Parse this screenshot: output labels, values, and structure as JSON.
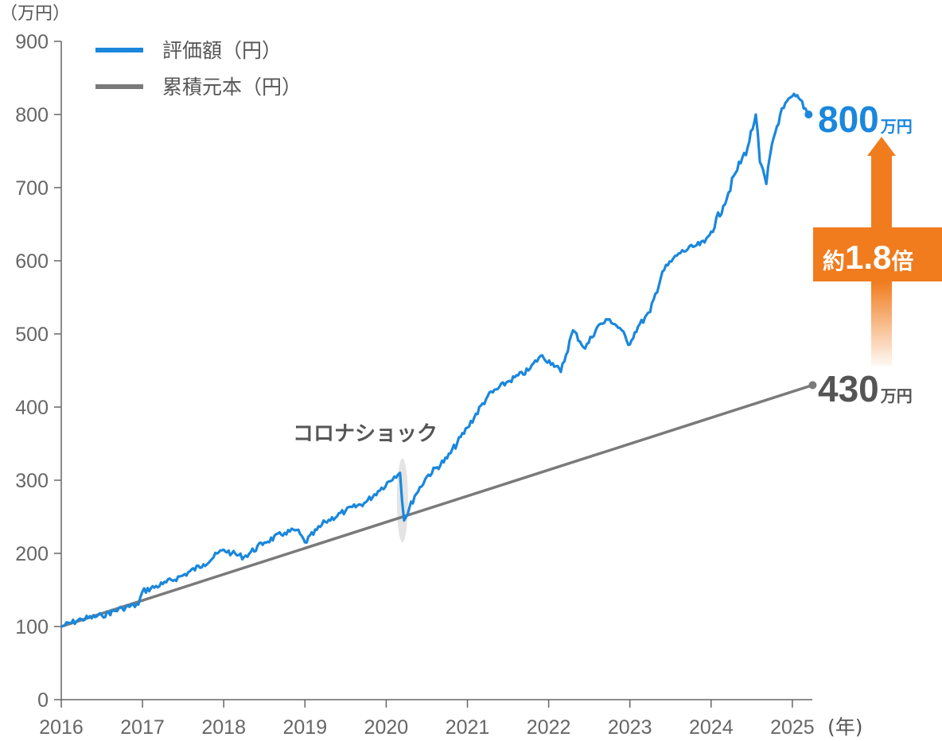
{
  "chart_data": {
    "type": "line",
    "y_unit_label": "（万円）",
    "x_unit_label": "(年)",
    "x_ticks": [
      "2016",
      "2017",
      "2018",
      "2019",
      "2020",
      "2021",
      "2022",
      "2023",
      "2024",
      "2025"
    ],
    "y_ticks": [
      "0",
      "100",
      "200",
      "300",
      "400",
      "500",
      "600",
      "700",
      "800",
      "900"
    ],
    "ylim": [
      0,
      900
    ],
    "xlim": [
      2016,
      2025.25
    ],
    "grid": false,
    "legend_position": "top-left",
    "series": [
      {
        "name": "評価額（円）",
        "color": "#1a87dc",
        "x": [
          2016.0,
          2016.25,
          2016.5,
          2016.75,
          2016.95,
          2017.0,
          2017.25,
          2017.5,
          2017.75,
          2018.0,
          2018.1,
          2018.25,
          2018.5,
          2018.75,
          2018.9,
          2019.0,
          2019.25,
          2019.5,
          2019.75,
          2019.9,
          2020.1,
          2020.17,
          2020.22,
          2020.35,
          2020.5,
          2020.75,
          2021.0,
          2021.25,
          2021.5,
          2021.75,
          2021.9,
          2022.05,
          2022.15,
          2022.3,
          2022.45,
          2022.6,
          2022.75,
          2022.9,
          2022.98,
          2023.1,
          2023.25,
          2023.4,
          2023.6,
          2023.8,
          2023.92,
          2024.0,
          2024.15,
          2024.3,
          2024.45,
          2024.55,
          2024.6,
          2024.68,
          2024.75,
          2024.85,
          2025.0,
          2025.1,
          2025.2
        ],
        "values": [
          100,
          110,
          115,
          125,
          130,
          148,
          158,
          170,
          185,
          205,
          200,
          195,
          215,
          228,
          232,
          215,
          243,
          258,
          270,
          285,
          305,
          310,
          245,
          278,
          305,
          330,
          372,
          415,
          435,
          450,
          470,
          460,
          448,
          505,
          480,
          510,
          520,
          505,
          485,
          510,
          530,
          585,
          610,
          620,
          625,
          640,
          675,
          720,
          755,
          800,
          735,
          705,
          760,
          800,
          825,
          820,
          800
        ]
      },
      {
        "name": "累積元本（円）",
        "color": "#7a7a7a",
        "x": [
          2016.0,
          2025.25
        ],
        "values": [
          100,
          430
        ]
      }
    ],
    "annotations": {
      "corona_label": "コロナショック",
      "corona_x": 2020.2,
      "corona_range": [
        215,
        330
      ],
      "end_value_label": "800",
      "end_value_unit": "万円",
      "principal_value_label": "430",
      "principal_value_unit": "万円",
      "ratio_prefix": "約",
      "ratio_value": "1.8",
      "ratio_suffix": "倍"
    },
    "colors": {
      "axis": "#666666",
      "evaluation_blue": "#1a87dc",
      "principal_gray": "#7a7a7a",
      "ratio_orange": "#f07c1e",
      "end_label_principal": "#555555"
    }
  }
}
